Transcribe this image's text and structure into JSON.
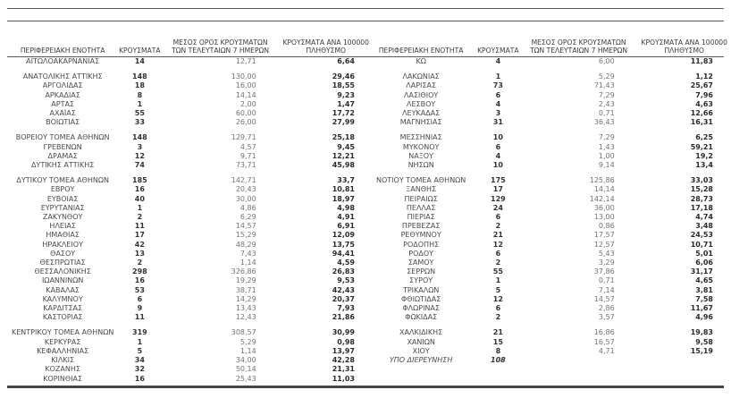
{
  "columns": {
    "region": "ΠΕΡΙΦΕΡΕΙΑΚΗ ΕΝΟΤΗΤΑ",
    "cases": "ΚΡΟΥΣΜΑΤΑ",
    "avg7": "ΜΕΣΟΣ ΟΡΟΣ ΚΡΟΥΣΜΑΤΩΝ ΤΩΝ ΤΕΛΕΥΤΑΙΩΝ 7 ΗΜΕΡΩΝ",
    "per100k": "ΚΡΟΥΣΜΑΤΑ ΑΝΑ 100000 ΠΛΗΘΥΣΜΟ"
  },
  "left_table": {
    "groups": [
      [
        {
          "region": "ΑΙΤΩΛΟΑΚΑΡΝΑΝΙΑΣ",
          "cases": "14",
          "avg7": "12,71",
          "per100k": "6,64"
        }
      ],
      [
        {
          "region": "ΑΝΑΤΟΛΙΚΗΣ ΑΤΤΙΚΗΣ",
          "cases": "148",
          "avg7": "130,00",
          "per100k": "29,46"
        },
        {
          "region": "ΑΡΓΟΛΙΔΑΣ",
          "cases": "18",
          "avg7": "16,00",
          "per100k": "18,55"
        },
        {
          "region": "ΑΡΚΑΔΙΑΣ",
          "cases": "8",
          "avg7": "14,14",
          "per100k": "9,23"
        },
        {
          "region": "ΑΡΤΑΣ",
          "cases": "1",
          "avg7": "2,00",
          "per100k": "1,47"
        },
        {
          "region": "ΑΧΑΪΑΣ",
          "cases": "55",
          "avg7": "60,00",
          "per100k": "17,72"
        },
        {
          "region": "ΒΟΙΩΤΙΑΣ",
          "cases": "33",
          "avg7": "26,00",
          "per100k": "27,99"
        }
      ],
      [
        {
          "region": "ΒΟΡΕΙΟΥ ΤΟΜΕΑ ΑΘΗΝΩΝ",
          "cases": "148",
          "avg7": "129,71",
          "per100k": "25,18"
        },
        {
          "region": "ΓΡΕΒΕΝΩΝ",
          "cases": "3",
          "avg7": "4,57",
          "per100k": "9,45"
        },
        {
          "region": "ΔΡΑΜΑΣ",
          "cases": "12",
          "avg7": "9,71",
          "per100k": "12,21"
        },
        {
          "region": "ΔΥΤΙΚΗΣ ΑΤΤΙΚΗΣ",
          "cases": "74",
          "avg7": "73,71",
          "per100k": "45,98"
        }
      ],
      [
        {
          "region": "ΔΥΤΙΚΟΥ ΤΟΜΕΑ ΑΘΗΝΩΝ",
          "cases": "185",
          "avg7": "142,71",
          "per100k": "33,7"
        },
        {
          "region": "ΕΒΡΟΥ",
          "cases": "16",
          "avg7": "20,43",
          "per100k": "10,81"
        },
        {
          "region": "ΕΥΒΟΙΑΣ",
          "cases": "40",
          "avg7": "30,00",
          "per100k": "18,97"
        },
        {
          "region": "ΕΥΡΥΤΑΝΙΑΣ",
          "cases": "1",
          "avg7": "4,86",
          "per100k": "4,98"
        },
        {
          "region": "ΖΑΚΥΝΘΟΥ",
          "cases": "2",
          "avg7": "6,29",
          "per100k": "4,91"
        },
        {
          "region": "ΗΛΕΙΑΣ",
          "cases": "11",
          "avg7": "14,57",
          "per100k": "6,91"
        },
        {
          "region": "ΗΜΑΘΙΑΣ",
          "cases": "17",
          "avg7": "15,29",
          "per100k": "12,09"
        },
        {
          "region": "ΗΡΑΚΛΕΙΟΥ",
          "cases": "42",
          "avg7": "48,29",
          "per100k": "13,75"
        },
        {
          "region": "ΘΑΣΟΥ",
          "cases": "13",
          "avg7": "7,43",
          "per100k": "94,41"
        },
        {
          "region": "ΘΕΣΠΡΩΤΙΑΣ",
          "cases": "2",
          "avg7": "1,14",
          "per100k": "4,59"
        },
        {
          "region": "ΘΕΣΣΑΛΟΝΙΚΗΣ",
          "cases": "298",
          "avg7": "326,86",
          "per100k": "26,83"
        },
        {
          "region": "ΙΩΑΝΝΙΝΩΝ",
          "cases": "16",
          "avg7": "19,29",
          "per100k": "9,53"
        },
        {
          "region": "ΚΑΒΑΛΑΣ",
          "cases": "53",
          "avg7": "38,71",
          "per100k": "42,43"
        },
        {
          "region": "ΚΑΛΥΜΝΟΥ",
          "cases": "6",
          "avg7": "14,29",
          "per100k": "20,37"
        },
        {
          "region": "ΚΑΡΔΙΤΣΑΣ",
          "cases": "9",
          "avg7": "13,43",
          "per100k": "7,93"
        },
        {
          "region": "ΚΑΣΤΟΡΙΑΣ",
          "cases": "11",
          "avg7": "12,43",
          "per100k": "21,86"
        }
      ],
      [
        {
          "region": "ΚΕΝΤΡΙΚΟΥ ΤΟΜΕΑ ΑΘΗΝΩΝ",
          "cases": "319",
          "avg7": "308,57",
          "per100k": "30,99"
        },
        {
          "region": "ΚΕΡΚΥΡΑΣ",
          "cases": "1",
          "avg7": "5,29",
          "per100k": "0,98"
        },
        {
          "region": "ΚΕΦΑΛΛΗΝΙΑΣ",
          "cases": "5",
          "avg7": "1,14",
          "per100k": "13,97"
        },
        {
          "region": "ΚΙΛΚΙΣ",
          "cases": "34",
          "avg7": "34,00",
          "per100k": "42,28"
        },
        {
          "region": "ΚΟΖΑΝΗΣ",
          "cases": "32",
          "avg7": "50,14",
          "per100k": "21,31"
        },
        {
          "region": "ΚΟΡΙΝΘΙΑΣ",
          "cases": "16",
          "avg7": "25,43",
          "per100k": "11,03"
        }
      ]
    ]
  },
  "right_table": {
    "groups": [
      [
        {
          "region": "ΚΩ",
          "cases": "4",
          "avg7": "6,00",
          "per100k": "11,83"
        }
      ],
      [
        {
          "region": "ΛΑΚΩΝΙΑΣ",
          "cases": "1",
          "avg7": "5,29",
          "per100k": "1,12"
        },
        {
          "region": "ΛΑΡΙΣΑΣ",
          "cases": "73",
          "avg7": "71,43",
          "per100k": "25,67"
        },
        {
          "region": "ΛΑΣΙΘΙΟΥ",
          "cases": "6",
          "avg7": "7,29",
          "per100k": "7,96"
        },
        {
          "region": "ΛΕΣΒΟΥ",
          "cases": "4",
          "avg7": "2,43",
          "per100k": "4,63"
        },
        {
          "region": "ΛΕΥΚΑΔΑΣ",
          "cases": "3",
          "avg7": "0,71",
          "per100k": "12,66"
        },
        {
          "region": "ΜΑΓΝΗΣΙΑΣ",
          "cases": "31",
          "avg7": "36,43",
          "per100k": "16,31"
        }
      ],
      [
        {
          "region": "ΜΕΣΣΗΝΙΑΣ",
          "cases": "10",
          "avg7": "7,29",
          "per100k": "6,25"
        },
        {
          "region": "ΜΥΚΟΝΟΥ",
          "cases": "6",
          "avg7": "1,43",
          "per100k": "59,21"
        },
        {
          "region": "ΝΑΞΟΥ",
          "cases": "4",
          "avg7": "1,00",
          "per100k": "19,2"
        },
        {
          "region": "ΝΗΣΩΝ",
          "cases": "10",
          "avg7": "9,14",
          "per100k": "13,4"
        }
      ],
      [
        {
          "region": "ΝΟΤΙΟΥ ΤΟΜΕΑ ΑΘΗΝΩΝ",
          "cases": "175",
          "avg7": "125,86",
          "per100k": "33,03"
        },
        {
          "region": "ΞΑΝΘΗΣ",
          "cases": "17",
          "avg7": "14,14",
          "per100k": "15,28"
        },
        {
          "region": "ΠΕΙΡΑΙΩΣ",
          "cases": "129",
          "avg7": "142,14",
          "per100k": "28,73"
        },
        {
          "region": "ΠΕΛΛΑΣ",
          "cases": "24",
          "avg7": "36,00",
          "per100k": "17,18"
        },
        {
          "region": "ΠΙΕΡΙΑΣ",
          "cases": "6",
          "avg7": "13,00",
          "per100k": "4,74"
        },
        {
          "region": "ΠΡΕΒΕΖΑΣ",
          "cases": "2",
          "avg7": "0,86",
          "per100k": "3,48"
        },
        {
          "region": "ΡΕΘΥΜΝΟΥ",
          "cases": "21",
          "avg7": "17,57",
          "per100k": "24,53"
        },
        {
          "region": "ΡΟΔΟΠΗΣ",
          "cases": "12",
          "avg7": "12,57",
          "per100k": "10,71"
        },
        {
          "region": "ΡΟΔΟΥ",
          "cases": "6",
          "avg7": "5,43",
          "per100k": "5,01"
        },
        {
          "region": "ΣΑΜΟΥ",
          "cases": "2",
          "avg7": "3,29",
          "per100k": "6,06"
        },
        {
          "region": "ΣΕΡΡΩΝ",
          "cases": "55",
          "avg7": "37,86",
          "per100k": "31,17"
        },
        {
          "region": "ΣΥΡΟΥ",
          "cases": "1",
          "avg7": "0,71",
          "per100k": "4,65"
        },
        {
          "region": "ΤΡΙΚΑΛΩΝ",
          "cases": "5",
          "avg7": "7,14",
          "per100k": "3,81"
        },
        {
          "region": "ΦΘΙΩΤΙΔΑΣ",
          "cases": "12",
          "avg7": "14,57",
          "per100k": "7,58"
        },
        {
          "region": "ΦΛΩΡΙΝΑΣ",
          "cases": "6",
          "avg7": "2,86",
          "per100k": "11,67"
        },
        {
          "region": "ΦΩΚΙΔΑΣ",
          "cases": "2",
          "avg7": "3,57",
          "per100k": "4,96"
        }
      ],
      [
        {
          "region": "ΧΑΛΚΙΔΙΚΗΣ",
          "cases": "21",
          "avg7": "16,86",
          "per100k": "19,83"
        },
        {
          "region": "ΧΑΝΙΩΝ",
          "cases": "15",
          "avg7": "16,57",
          "per100k": "9,58"
        },
        {
          "region": "ΧΙΟΥ",
          "cases": "8",
          "avg7": "4,71",
          "per100k": "15,19"
        },
        {
          "region": "ΥΠΟ ΔΙΕΡΕΥΝΗΣΗ",
          "cases": "108",
          "avg7": "",
          "per100k": "",
          "emphasis": true
        }
      ]
    ]
  }
}
